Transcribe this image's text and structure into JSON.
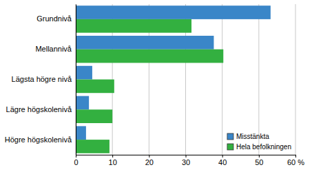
{
  "chart_data": {
    "type": "bar",
    "orientation": "horizontal",
    "categories": [
      "Grundnivå",
      "Mellannivå",
      "Lägsta högre nivå",
      "Lägre högskolenivå",
      "Högre högskolenivå"
    ],
    "series": [
      {
        "name": "Misstänkta",
        "color": "#3a86c8",
        "values": [
          53.2,
          37.7,
          4.5,
          3.6,
          2.8
        ]
      },
      {
        "name": "Hela befolkningen",
        "color": "#33b040",
        "values": [
          31.6,
          40.3,
          10.5,
          10.0,
          9.2
        ]
      }
    ],
    "xlim": [
      0,
      60
    ],
    "xticks": [
      0,
      10,
      20,
      30,
      40,
      50,
      {
        "value": 60,
        "label": "60 %"
      }
    ],
    "grid": true,
    "legend": "lower right"
  }
}
